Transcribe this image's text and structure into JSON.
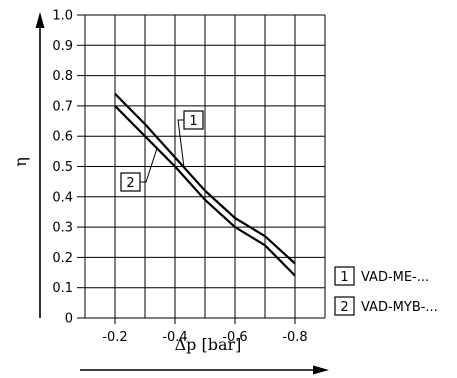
{
  "chart_data": {
    "type": "line",
    "title": "",
    "xlabel": "Δp [bar]",
    "ylabel": "η",
    "x_ticks": [
      "-0.2",
      "-0.4",
      "-0.6",
      "-0.8"
    ],
    "y_ticks": [
      "0",
      "0.1",
      "0.2",
      "0.3",
      "0.4",
      "0.5",
      "0.6",
      "0.7",
      "0.8",
      "0.9",
      "1.0"
    ],
    "xlim": [
      -0.1,
      -0.9
    ],
    "ylim": [
      0,
      1.0
    ],
    "grid": true,
    "series": [
      {
        "marker": "1",
        "name": "VAD-ME-...",
        "x": [
          -0.2,
          -0.3,
          -0.4,
          -0.5,
          -0.6,
          -0.7,
          -0.8
        ],
        "y": [
          0.74,
          0.64,
          0.53,
          0.42,
          0.33,
          0.27,
          0.18
        ]
      },
      {
        "marker": "2",
        "name": "VAD-MYB-...",
        "x": [
          -0.2,
          -0.3,
          -0.4,
          -0.5,
          -0.6,
          -0.7,
          -0.8
        ],
        "y": [
          0.7,
          0.6,
          0.5,
          0.39,
          0.3,
          0.24,
          0.14
        ]
      }
    ],
    "legend": {
      "placement": "bottom-right"
    }
  }
}
